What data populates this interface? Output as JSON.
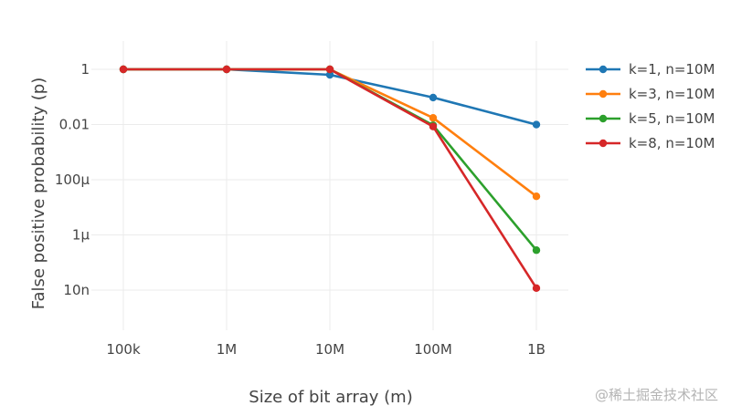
{
  "chart_data": {
    "type": "line",
    "title": "",
    "xlabel": "Size of bit array (m)",
    "ylabel": "False positive probability (p)",
    "x_scale": "log",
    "y_scale": "log",
    "categories": [
      "100k",
      "1M",
      "10M",
      "100M",
      "1B"
    ],
    "x": [
      100000,
      1000000,
      10000000,
      100000000,
      1000000000
    ],
    "y_ticks": [
      {
        "value": 1,
        "label": "1"
      },
      {
        "value": 0.01,
        "label": "0.01"
      },
      {
        "value": 0.0001,
        "label": "100µ"
      },
      {
        "value": 1e-06,
        "label": "1µ"
      },
      {
        "value": 1e-08,
        "label": "10n"
      }
    ],
    "ylim": [
      2e-10,
      3
    ],
    "grid": true,
    "legend_position": "right",
    "series": [
      {
        "name": "k=1, n=10M",
        "color": "#1f77b4",
        "values": [
          1.0,
          1.0,
          0.632,
          0.095,
          0.00995
        ]
      },
      {
        "name": "k=3, n=10M",
        "color": "#ff7f0e",
        "values": [
          1.0,
          1.0,
          0.9996,
          0.0174,
          2.5e-05
        ]
      },
      {
        "name": "k=5, n=10M",
        "color": "#2ca02c",
        "values": [
          1.0,
          1.0,
          1.0,
          0.00943,
          2.8e-07
        ]
      },
      {
        "name": "k=8, n=10M",
        "color": "#d62728",
        "values": [
          1.0,
          1.0,
          1.0,
          0.00846,
          1.18e-08
        ]
      }
    ]
  },
  "watermark": "@稀土掘金技术社区"
}
